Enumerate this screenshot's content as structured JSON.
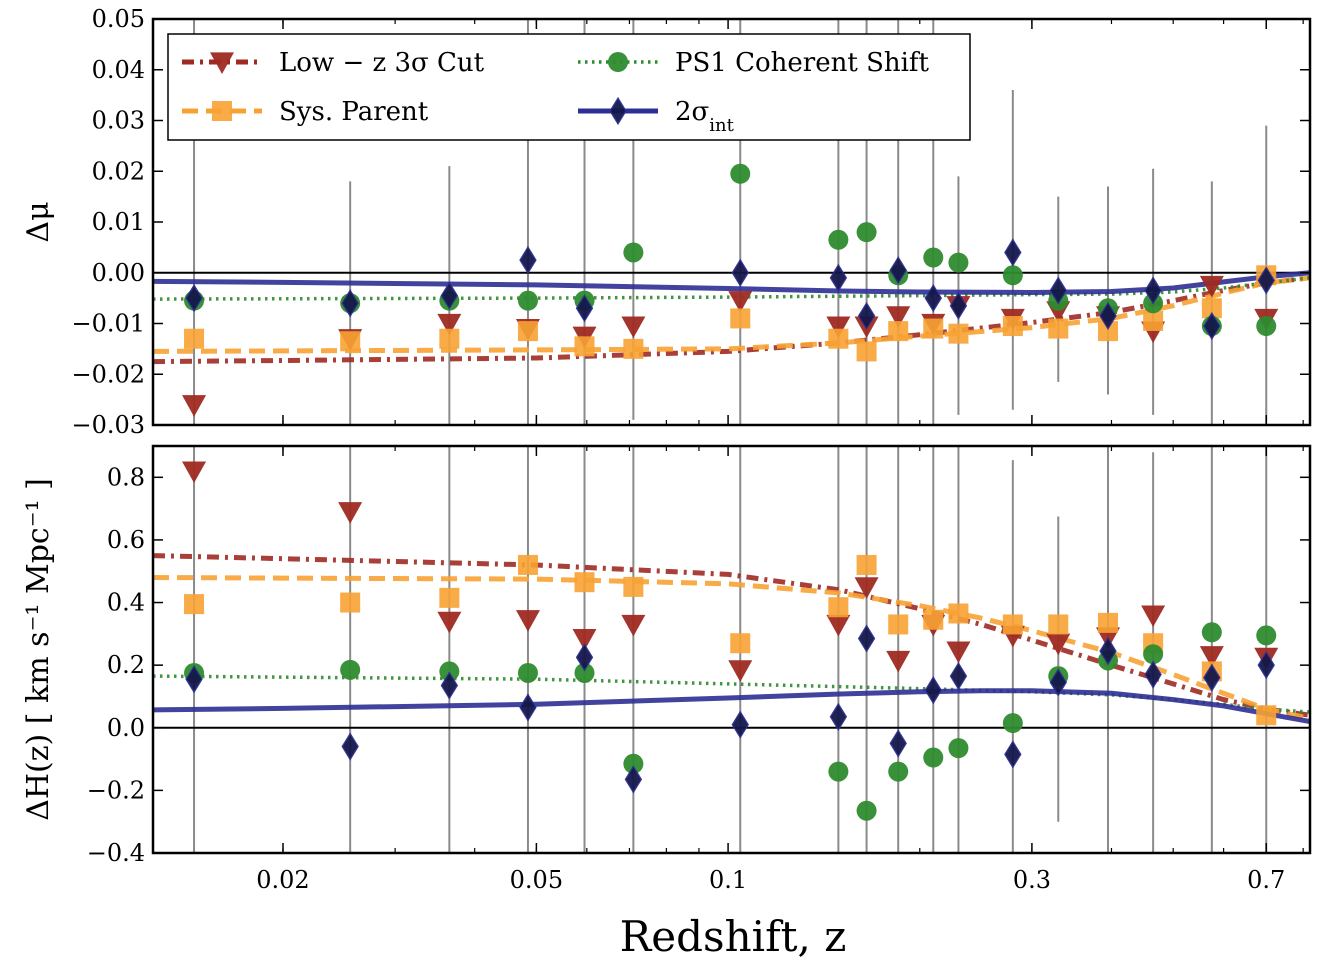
{
  "colors": {
    "low_z": "#9e2a22",
    "parent": "#f7a233",
    "ps1": "#2e8b2e",
    "sigma": "#2c2f94",
    "errbar": "#8a8a8a",
    "diamond_fill": "#14174a"
  },
  "chart_data": {
    "type": "scatter",
    "x_scale": "log",
    "xlim": [
      0.0125,
      0.82
    ],
    "xlabel": "Redshift, z",
    "xticks": [
      0.02,
      0.05,
      0.1,
      0.3,
      0.7
    ],
    "xtick_labels": [
      "0.02",
      "0.05",
      "0.1",
      "0.3",
      "0.7"
    ],
    "z": [
      0.0145,
      0.0255,
      0.0365,
      0.0485,
      0.0595,
      0.071,
      0.1045,
      0.149,
      0.165,
      0.185,
      0.21,
      0.23,
      0.28,
      0.33,
      0.395,
      0.465,
      0.575,
      0.7
    ],
    "legend": {
      "placement": "upper-left",
      "entries": [
        {
          "key": "low_z",
          "label": "Low − z 3σ Cut"
        },
        {
          "key": "ps1",
          "label": "PS1 Coherent Shift"
        },
        {
          "key": "parent",
          "label": "Sys. Parent"
        },
        {
          "key": "sigma",
          "label": "2σ",
          "sub": "int"
        }
      ]
    },
    "panels": [
      {
        "id": "top",
        "ylabel": "Δμ",
        "ylim": [
          -0.03,
          0.05
        ],
        "yticks": [
          -0.03,
          -0.02,
          -0.01,
          0.0,
          0.01,
          0.02,
          0.03,
          0.04,
          0.05
        ],
        "ytick_labels": [
          "−0.03",
          "−0.02",
          "−0.01",
          "0.00",
          "0.01",
          "0.02",
          "0.03",
          "0.04",
          "0.05"
        ],
        "errbars": [
          [
            -0.03,
            0.05
          ],
          [
            -0.03,
            0.018
          ],
          [
            -0.03,
            0.021
          ],
          [
            -0.03,
            0.05
          ],
          [
            -0.03,
            0.05
          ],
          [
            -0.029,
            0.05
          ],
          [
            -0.03,
            0.05
          ],
          [
            -0.03,
            0.05
          ],
          [
            -0.03,
            0.05
          ],
          [
            -0.03,
            0.05
          ],
          [
            -0.03,
            0.05
          ],
          [
            -0.028,
            0.019
          ],
          [
            -0.027,
            0.036
          ],
          [
            -0.0215,
            0.015
          ],
          [
            -0.024,
            0.017
          ],
          [
            -0.028,
            0.0205
          ],
          [
            -0.03,
            0.018
          ],
          [
            -0.03,
            0.029
          ]
        ],
        "series": [
          {
            "key": "low_z",
            "marker": "triangle-down",
            "values": [
              -0.026,
              -0.013,
              -0.01,
              -0.011,
              -0.0125,
              -0.0105,
              -0.0055,
              -0.0105,
              -0.0105,
              -0.0085,
              -0.01,
              -0.0065,
              -0.009,
              -0.0075,
              -0.0085,
              -0.0115,
              -0.0025,
              -0.009
            ]
          },
          {
            "key": "parent",
            "marker": "square",
            "values": [
              -0.013,
              -0.0135,
              -0.013,
              -0.0115,
              -0.0145,
              -0.015,
              -0.009,
              -0.013,
              -0.0155,
              -0.0115,
              -0.011,
              -0.012,
              -0.0105,
              -0.011,
              -0.0115,
              -0.0095,
              -0.007,
              -0.0005
            ]
          },
          {
            "key": "ps1",
            "marker": "circle",
            "values": [
              -0.0055,
              -0.006,
              -0.0055,
              -0.0055,
              -0.0055,
              0.004,
              0.0195,
              0.0065,
              0.008,
              -0.0005,
              0.003,
              0.002,
              -0.0005,
              -0.0055,
              -0.007,
              -0.006,
              -0.0105,
              -0.0105
            ]
          },
          {
            "key": "sigma",
            "marker": "diamond",
            "values": [
              -0.005,
              -0.006,
              -0.0045,
              0.0025,
              -0.007,
              null,
              0.0,
              -0.001,
              -0.0085,
              0.0005,
              -0.005,
              -0.0065,
              0.004,
              -0.0035,
              -0.0085,
              -0.0035,
              -0.0105,
              -0.0015
            ]
          }
        ],
        "curves": [
          {
            "key": "low_z",
            "style": "dashdot",
            "x": [
              0.0125,
              0.02,
              0.05,
              0.1,
              0.15,
              0.2,
              0.3,
              0.4,
              0.5,
              0.6,
              0.7,
              0.82
            ],
            "y": [
              -0.0175,
              -0.0173,
              -0.0168,
              -0.0155,
              -0.0138,
              -0.0122,
              -0.0098,
              -0.0078,
              -0.0055,
              -0.0035,
              -0.002,
              -0.001
            ]
          },
          {
            "key": "parent",
            "style": "dashed",
            "x": [
              0.0125,
              0.02,
              0.05,
              0.1,
              0.15,
              0.2,
              0.3,
              0.4,
              0.5,
              0.6,
              0.7,
              0.82
            ],
            "y": [
              -0.0155,
              -0.0154,
              -0.0152,
              -0.015,
              -0.0138,
              -0.0125,
              -0.0108,
              -0.009,
              -0.0065,
              -0.004,
              -0.002,
              -0.001
            ]
          },
          {
            "key": "ps1",
            "style": "dotted",
            "x": [
              0.0125,
              0.05,
              0.1,
              0.2,
              0.3,
              0.4,
              0.5,
              0.6,
              0.7,
              0.82
            ],
            "y": [
              -0.0052,
              -0.005,
              -0.0048,
              -0.0045,
              -0.0043,
              -0.0042,
              -0.0038,
              -0.003,
              -0.002,
              -0.001
            ]
          },
          {
            "key": "sigma",
            "style": "solid",
            "x": [
              0.0125,
              0.02,
              0.05,
              0.1,
              0.15,
              0.2,
              0.3,
              0.4,
              0.5,
              0.6,
              0.7,
              0.82
            ],
            "y": [
              -0.0017,
              -0.0019,
              -0.0024,
              -0.0031,
              -0.0036,
              -0.0038,
              -0.0039,
              -0.0037,
              -0.003,
              -0.0018,
              -0.0008,
              0.0
            ]
          }
        ]
      },
      {
        "id": "bottom",
        "ylabel": "ΔH(z)  [ km s⁻¹ Mpc⁻¹ ]",
        "ylim": [
          -0.4,
          0.9
        ],
        "yticks": [
          -0.4,
          -0.2,
          0.0,
          0.2,
          0.4,
          0.6,
          0.8
        ],
        "ytick_labels": [
          "−0.4",
          "−0.2",
          "0.0",
          "0.2",
          "0.4",
          "0.6",
          "0.8"
        ],
        "errbars": [
          [
            -0.4,
            0.9
          ],
          [
            -0.4,
            0.9
          ],
          [
            -0.4,
            0.9
          ],
          [
            -0.4,
            0.9
          ],
          [
            -0.4,
            0.9
          ],
          [
            -0.4,
            0.9
          ],
          [
            -0.4,
            0.9
          ],
          [
            -0.4,
            0.9
          ],
          [
            -0.4,
            0.9
          ],
          [
            -0.4,
            0.9
          ],
          [
            -0.4,
            0.9
          ],
          [
            -0.4,
            0.9
          ],
          [
            -0.4,
            0.855
          ],
          [
            -0.3,
            0.675
          ],
          [
            -0.4,
            0.9
          ],
          [
            -0.4,
            0.88
          ],
          [
            -0.4,
            0.9
          ],
          [
            -0.4,
            0.9
          ]
        ],
        "series": [
          {
            "key": "low_z",
            "marker": "triangle-down",
            "values": [
              0.82,
              0.69,
              0.34,
              0.345,
              0.285,
              0.33,
              0.185,
              0.33,
              0.45,
              0.215,
              0.33,
              0.245,
              0.295,
              0.27,
              0.29,
              0.36,
              0.23,
              0.225
            ]
          },
          {
            "key": "parent",
            "marker": "square",
            "values": [
              0.395,
              0.4,
              0.415,
              0.52,
              0.465,
              0.45,
              0.27,
              0.385,
              0.52,
              0.33,
              0.345,
              0.365,
              0.33,
              0.33,
              0.335,
              0.27,
              0.18,
              0.04
            ]
          },
          {
            "key": "ps1",
            "marker": "circle",
            "values": [
              0.175,
              0.185,
              0.18,
              0.175,
              0.175,
              -0.115,
              null,
              -0.14,
              -0.265,
              -0.14,
              -0.095,
              -0.065,
              0.015,
              0.165,
              0.215,
              0.235,
              0.305,
              0.295
            ]
          },
          {
            "key": "sigma",
            "marker": "diamond",
            "values": [
              0.155,
              -0.06,
              0.135,
              0.065,
              0.225,
              -0.165,
              0.01,
              0.035,
              0.285,
              -0.05,
              0.12,
              0.165,
              -0.085,
              0.145,
              0.245,
              0.17,
              0.16,
              0.2
            ]
          }
        ],
        "curves": [
          {
            "key": "low_z",
            "style": "dashdot",
            "x": [
              0.0125,
              0.02,
              0.05,
              0.1,
              0.15,
              0.2,
              0.25,
              0.3,
              0.4,
              0.5,
              0.6,
              0.7,
              0.82
            ],
            "y": [
              0.55,
              0.54,
              0.52,
              0.49,
              0.44,
              0.38,
              0.33,
              0.28,
              0.2,
              0.14,
              0.09,
              0.06,
              0.04
            ]
          },
          {
            "key": "parent",
            "style": "dashed",
            "x": [
              0.0125,
              0.02,
              0.05,
              0.1,
              0.15,
              0.2,
              0.25,
              0.3,
              0.4,
              0.5,
              0.6,
              0.7,
              0.82
            ],
            "y": [
              0.48,
              0.478,
              0.475,
              0.46,
              0.43,
              0.39,
              0.35,
              0.31,
              0.24,
              0.17,
              0.11,
              0.06,
              0.03
            ]
          },
          {
            "key": "ps1",
            "style": "dotted",
            "x": [
              0.0125,
              0.05,
              0.1,
              0.2,
              0.3,
              0.4,
              0.5,
              0.6,
              0.7,
              0.82
            ],
            "y": [
              0.165,
              0.155,
              0.14,
              0.125,
              0.115,
              0.105,
              0.09,
              0.075,
              0.06,
              0.05
            ]
          },
          {
            "key": "sigma",
            "style": "solid",
            "x": [
              0.0125,
              0.02,
              0.05,
              0.1,
              0.15,
              0.2,
              0.25,
              0.3,
              0.4,
              0.5,
              0.6,
              0.7,
              0.82
            ],
            "y": [
              0.057,
              0.062,
              0.075,
              0.095,
              0.108,
              0.115,
              0.118,
              0.118,
              0.11,
              0.09,
              0.07,
              0.045,
              0.02
            ]
          }
        ]
      }
    ]
  }
}
